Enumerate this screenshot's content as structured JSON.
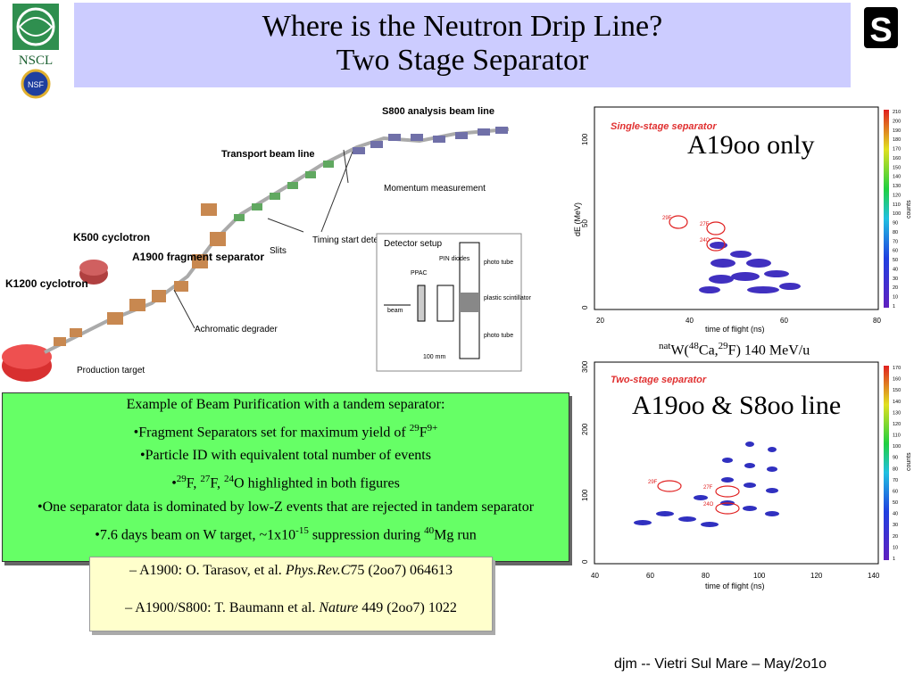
{
  "title": {
    "line1": "Where is the Neutron Drip Line?",
    "line2": "Two Stage Separator"
  },
  "logos": {
    "nscl_text": "NSCL",
    "nsf_text": "NSF",
    "msu_letter": "S"
  },
  "beamline": {
    "labels": {
      "s800": "S800 analysis beam line",
      "transport": "Transport beam line",
      "momentum": "Momentum measurement",
      "k500": "K500 cyclotron",
      "a1900": "A1900 fragment separator",
      "k1200": "K1200 cyclotron",
      "slits": "Slits",
      "timing": "Timing start detectors",
      "achromatic": "Achromatic degrader",
      "production": "Production target",
      "detector_setup": "Detector setup",
      "ppac": "PPAC",
      "pin": "PIN diodes",
      "photo_tube_top": "photo tube",
      "plastic": "plastic scintillator",
      "photo_tube_bottom": "photo tube",
      "beam": "beam",
      "scale": "100 mm"
    }
  },
  "plot1": {
    "title": "Single-stage separator",
    "xlabel": "time of flight (ns)",
    "ylabel": "dE (MeV)",
    "xticks": [
      "20",
      "40",
      "60",
      "80"
    ],
    "yticks": [
      "0",
      "50",
      "100"
    ],
    "cbar_ticks": [
      "210",
      "200",
      "190",
      "180",
      "170",
      "160",
      "150",
      "140",
      "130",
      "120",
      "110",
      "100",
      "90",
      "80",
      "70",
      "60",
      "50",
      "40",
      "30",
      "20",
      "10",
      "1"
    ],
    "cbar_label": "counts",
    "isotopes": [
      "29F",
      "27F",
      "24O"
    ]
  },
  "plot2": {
    "title": "Two-stage separator",
    "xlabel": "time of flight (ns)",
    "xticks": [
      "40",
      "60",
      "80",
      "100",
      "120",
      "140"
    ],
    "yticks": [
      "0",
      "100",
      "200",
      "300"
    ],
    "cbar_ticks": [
      "170",
      "160",
      "150",
      "140",
      "130",
      "120",
      "110",
      "100",
      "90",
      "80",
      "70",
      "60",
      "50",
      "40",
      "30",
      "20",
      "10",
      "1"
    ],
    "cbar_label": "counts",
    "isotopes": [
      "29F",
      "27F",
      "24O"
    ]
  },
  "labels": {
    "a1900_only": "A19oo only",
    "a1900_s800": "A19oo & S8oo line",
    "reaction_pre": "nat",
    "reaction_w": "W(",
    "reaction_a1": "48",
    "reaction_ca": "Ca,",
    "reaction_a2": "29",
    "reaction_rest": "F)  140 MeV/u"
  },
  "green_box": {
    "heading": "Example of Beam Purification with a tandem separator:",
    "b1_pre": "•Fragment Separators set for maximum yield of ",
    "b1_sup1": "29",
    "b1_mid": "F",
    "b1_sup2": "9+",
    "b2": "•Particle ID with equivalent total number of events",
    "b3_pre": "•",
    "b3_s1": "29",
    "b3_t1": "F, ",
    "b3_s2": "27",
    "b3_t2": "F, ",
    "b3_s3": "24",
    "b3_t3": "O highlighted in both figures",
    "b4": "•One separator data is dominated by low-Z events that are rejected in tandem separator",
    "b5_pre": "•7.6 days beam on W target, ~1x10",
    "b5_exp": "-15",
    "b5_mid": " suppression during ",
    "b5_sup": "40",
    "b5_end": "Mg run"
  },
  "refs": {
    "r1_pre": "– A1900: O. Tarasov, et al. ",
    "r1_journal": "Phys.Rev.C",
    "r1_post": "75 (2oo7) 064613",
    "r2_pre": "– A1900/S800: T. Baumann et al. ",
    "r2_journal": "Nature",
    "r2_post": " 449 (2oo7) 1022"
  },
  "footer": "djm  -- Vietri Sul Mare – May/2o1o"
}
